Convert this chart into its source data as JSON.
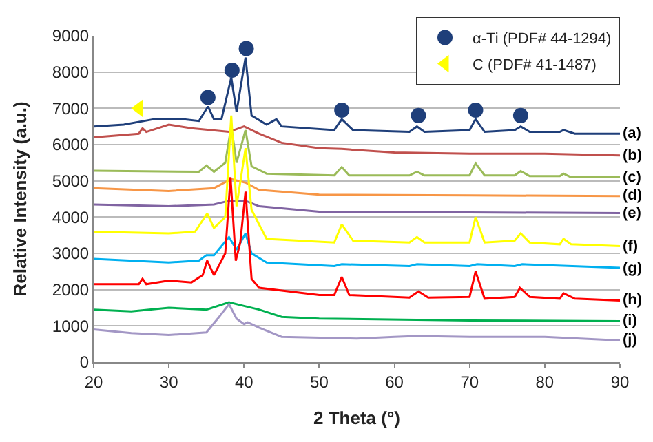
{
  "chart_data": {
    "type": "line",
    "xlabel": "2 Theta (°)",
    "ylabel": "Relative Intensity (a.u.)",
    "xlim": [
      20,
      90
    ],
    "xticks": [
      20,
      30,
      40,
      50,
      60,
      70,
      80,
      90
    ],
    "ylim": [
      0,
      9000
    ],
    "yticks": [
      0,
      1000,
      2000,
      3000,
      4000,
      5000,
      6000,
      7000,
      8000,
      9000
    ],
    "grid": "y",
    "legend": "top right",
    "line_style": "solid",
    "series": [
      {
        "name": "(a)",
        "color": "#1f3f7a",
        "x": [
          20,
          24,
          28,
          32,
          34,
          35.2,
          36,
          37,
          38.3,
          39,
          40.2,
          41,
          43,
          44.3,
          45,
          52,
          53,
          54.5,
          62,
          63,
          64,
          70,
          70.8,
          72,
          76,
          76.8,
          78,
          82,
          82.5,
          84,
          90
        ],
        "values": [
          6500,
          6550,
          6700,
          6700,
          6650,
          7050,
          6700,
          6700,
          7850,
          6900,
          8400,
          6800,
          6550,
          6700,
          6500,
          6400,
          6700,
          6400,
          6350,
          6500,
          6350,
          6400,
          6700,
          6350,
          6400,
          6500,
          6350,
          6350,
          6400,
          6300,
          6300
        ]
      },
      {
        "name": "(b)",
        "color": "#c0504d",
        "x": [
          20,
          26,
          26.5,
          27,
          30,
          33,
          38,
          40,
          42,
          45,
          50,
          53,
          60,
          70,
          80,
          90
        ],
        "values": [
          6200,
          6300,
          6450,
          6350,
          6550,
          6450,
          6350,
          6500,
          6300,
          6050,
          5900,
          5880,
          5780,
          5750,
          5750,
          5700
        ]
      },
      {
        "name": "(c)",
        "color": "#9bbb59",
        "x": [
          20,
          34,
          35,
          36,
          37.5,
          38.3,
          39,
          40.2,
          41,
          43,
          52,
          53,
          54,
          62,
          63,
          64,
          70,
          70.8,
          72,
          76,
          76.8,
          78,
          82,
          82.5,
          83.5,
          90
        ],
        "values": [
          5280,
          5250,
          5420,
          5250,
          5500,
          6500,
          5500,
          6400,
          5400,
          5200,
          5150,
          5380,
          5150,
          5150,
          5250,
          5150,
          5150,
          5480,
          5150,
          5150,
          5270,
          5130,
          5130,
          5200,
          5100,
          5100
        ]
      },
      {
        "name": "(d)",
        "color": "#f79646",
        "x": [
          20,
          30,
          36,
          38.3,
          40.2,
          42,
          50,
          70,
          90
        ],
        "values": [
          4800,
          4720,
          4800,
          5050,
          4950,
          4750,
          4620,
          4600,
          4580
        ]
      },
      {
        "name": "(e)",
        "color": "#8064a2",
        "x": [
          20,
          30,
          36,
          38,
          40.2,
          42,
          50,
          70,
          90
        ],
        "values": [
          4350,
          4300,
          4350,
          4450,
          4450,
          4300,
          4150,
          4130,
          4110
        ]
      },
      {
        "name": "(f)",
        "color": "#ffff00",
        "x": [
          20,
          30,
          33.5,
          35.1,
          36,
          37.5,
          38.3,
          39,
          40.2,
          41,
          43,
          52,
          53,
          54.5,
          62,
          63,
          64,
          70,
          70.8,
          72,
          76,
          76.8,
          78,
          82,
          82.5,
          83.5,
          90
        ],
        "values": [
          3600,
          3550,
          3600,
          4100,
          3700,
          4000,
          6800,
          4300,
          5900,
          4200,
          3400,
          3300,
          3800,
          3350,
          3300,
          3450,
          3300,
          3300,
          4000,
          3300,
          3350,
          3550,
          3300,
          3250,
          3400,
          3250,
          3200
        ]
      },
      {
        "name": "(g)",
        "color": "#00b0f0",
        "x": [
          20,
          30,
          34,
          35,
          36,
          38,
          39,
          40.2,
          41,
          43,
          52,
          53,
          62,
          63,
          70,
          71,
          76,
          77,
          90
        ],
        "values": [
          2850,
          2750,
          2800,
          2950,
          2950,
          3450,
          3100,
          3550,
          3000,
          2750,
          2650,
          2700,
          2650,
          2700,
          2650,
          2700,
          2650,
          2700,
          2600
        ]
      },
      {
        "name": "(h)",
        "color": "#ff0000",
        "x": [
          20,
          26,
          26.5,
          27,
          30,
          33,
          34.5,
          35.1,
          36,
          37.5,
          38.2,
          38.9,
          39.5,
          40.2,
          41,
          42,
          50,
          52,
          53,
          54,
          62,
          63.2,
          64.5,
          70,
          70.8,
          72,
          76,
          76.7,
          78,
          82,
          82.5,
          84,
          90
        ],
        "values": [
          2150,
          2150,
          2300,
          2150,
          2250,
          2200,
          2400,
          2800,
          2400,
          3000,
          5100,
          2800,
          3300,
          4700,
          2300,
          2050,
          1850,
          1850,
          2350,
          1850,
          1780,
          1950,
          1780,
          1800,
          2500,
          1750,
          1800,
          2050,
          1800,
          1750,
          1900,
          1750,
          1700
        ]
      },
      {
        "name": "(i)",
        "color": "#00b050",
        "x": [
          20,
          25,
          30,
          35,
          38,
          40,
          42,
          45,
          50,
          70,
          90
        ],
        "values": [
          1450,
          1400,
          1500,
          1450,
          1650,
          1550,
          1450,
          1250,
          1200,
          1150,
          1130
        ]
      },
      {
        "name": "(j)",
        "color": "#a397c5",
        "x": [
          20,
          25,
          30,
          35,
          36.5,
          38,
          39,
          40,
          40.5,
          42,
          45,
          55,
          60,
          63,
          70,
          80,
          90
        ],
        "values": [
          900,
          800,
          750,
          820,
          1200,
          1600,
          1200,
          1050,
          1100,
          950,
          700,
          650,
          700,
          720,
          700,
          700,
          600
        ]
      },
      {
        "name": "α-Ti (PDF# 44-1294)",
        "type": "scatter",
        "marker": "circle",
        "color": "#1f3f7a",
        "x": [
          35.2,
          38.4,
          40.3,
          53,
          63.2,
          70.8,
          76.8
        ],
        "values": [
          7300,
          8050,
          8650,
          6950,
          6800,
          6950,
          6800
        ]
      },
      {
        "name": "C (PDF# 41-1487)",
        "type": "scatter",
        "marker": "triangle",
        "color": "#ffff00",
        "x": [
          26
        ],
        "values": [
          7000
        ]
      }
    ]
  }
}
